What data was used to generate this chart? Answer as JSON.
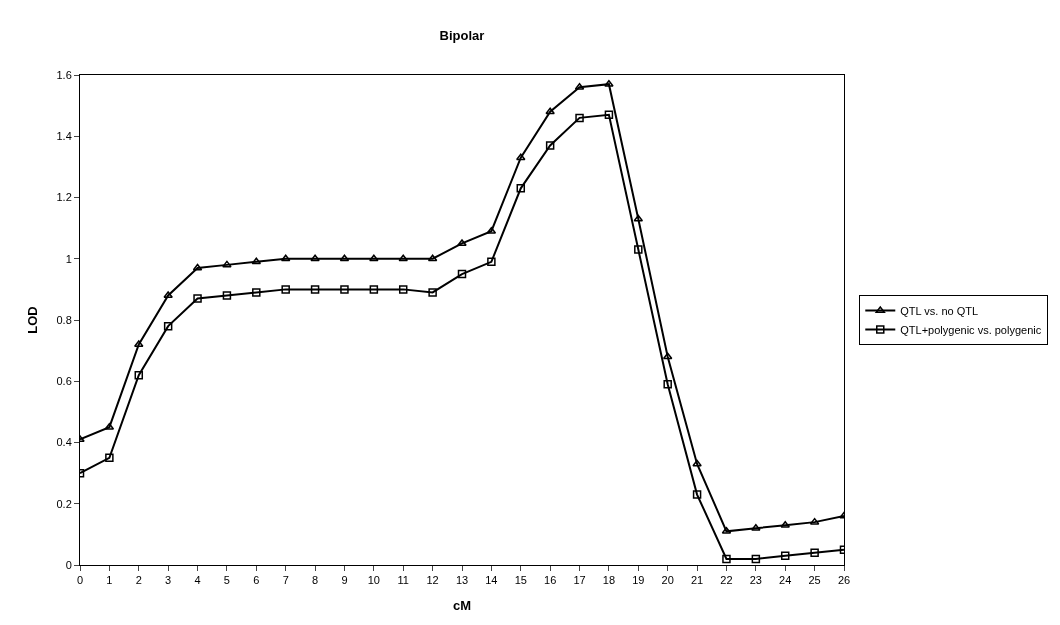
{
  "chart_data": {
    "type": "line",
    "title": "Bipolar",
    "xlabel": "cM",
    "ylabel": "LOD",
    "x": [
      0,
      1,
      2,
      3,
      4,
      5,
      6,
      7,
      8,
      9,
      10,
      11,
      12,
      13,
      14,
      15,
      16,
      17,
      18,
      19,
      20,
      21,
      22,
      23,
      24,
      25,
      26
    ],
    "series": [
      {
        "name": "QTL vs. no QTL",
        "color": "#000000",
        "marker": "triangle",
        "values": [
          0.41,
          0.45,
          0.72,
          0.88,
          0.97,
          0.98,
          0.99,
          1.0,
          1.0,
          1.0,
          1.0,
          1.0,
          1.0,
          1.05,
          1.09,
          1.33,
          1.48,
          1.56,
          1.57,
          1.13,
          0.68,
          0.33,
          0.11,
          0.12,
          0.13,
          0.14,
          0.16
        ]
      },
      {
        "name": "QTL+polygenic vs. polygenic",
        "color": "#000000",
        "marker": "square",
        "values": [
          0.3,
          0.35,
          0.62,
          0.78,
          0.87,
          0.88,
          0.89,
          0.9,
          0.9,
          0.9,
          0.9,
          0.9,
          0.89,
          0.95,
          0.99,
          1.23,
          1.37,
          1.46,
          1.47,
          1.03,
          0.59,
          0.23,
          0.02,
          0.02,
          0.03,
          0.04,
          0.05
        ]
      }
    ],
    "xlim": [
      0,
      26
    ],
    "xticks": [
      0,
      1,
      2,
      3,
      4,
      5,
      6,
      7,
      8,
      9,
      10,
      11,
      12,
      13,
      14,
      15,
      16,
      17,
      18,
      19,
      20,
      21,
      22,
      23,
      24,
      25,
      26
    ],
    "ylim": [
      0,
      1.6
    ],
    "yticks": [
      0,
      0.2,
      0.4,
      0.6,
      0.8,
      1,
      1.2,
      1.4,
      1.6
    ],
    "grid": false,
    "legend": "right",
    "line_style": "solid"
  }
}
